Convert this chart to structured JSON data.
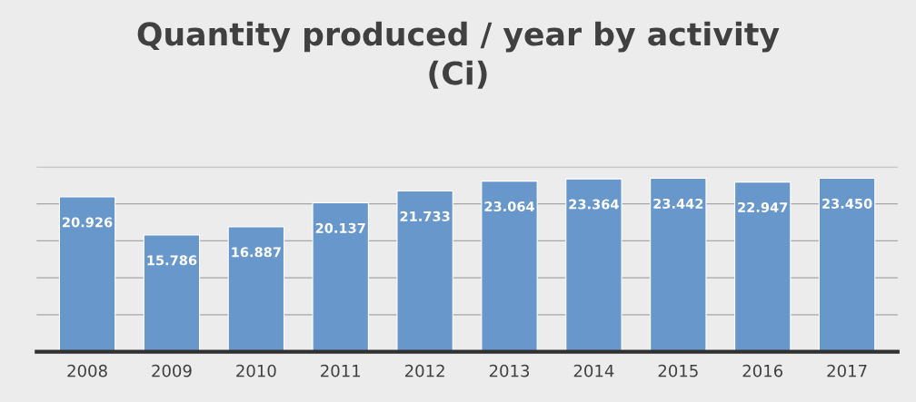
{
  "chart_data": {
    "type": "bar",
    "title": "Quantity produced / year by activity\n(Ci)",
    "categories": [
      "2008",
      "2009",
      "2010",
      "2011",
      "2012",
      "2013",
      "2014",
      "2015",
      "2016",
      "2017"
    ],
    "values": [
      20.926,
      15.786,
      16.887,
      20.137,
      21.733,
      23.064,
      23.364,
      23.442,
      22.947,
      23.45
    ],
    "value_labels": [
      "20.926",
      "15.786",
      "16.887",
      "20.137",
      "21.733",
      "23.064",
      "23.364",
      "23.442",
      "22.947",
      "23.450"
    ],
    "color": "#6897cb",
    "ylim": [
      0,
      25
    ],
    "yticks": [
      {
        "value": 0,
        "label": null
      },
      {
        "value": 5,
        "label": null
      },
      {
        "value": 10,
        "label": null
      },
      {
        "value": 15,
        "label": null
      },
      {
        "value": 20,
        "label": null
      },
      {
        "value": 25,
        "label": null
      }
    ],
    "tick_labels": "x",
    "grid": "y",
    "legend": false
  }
}
